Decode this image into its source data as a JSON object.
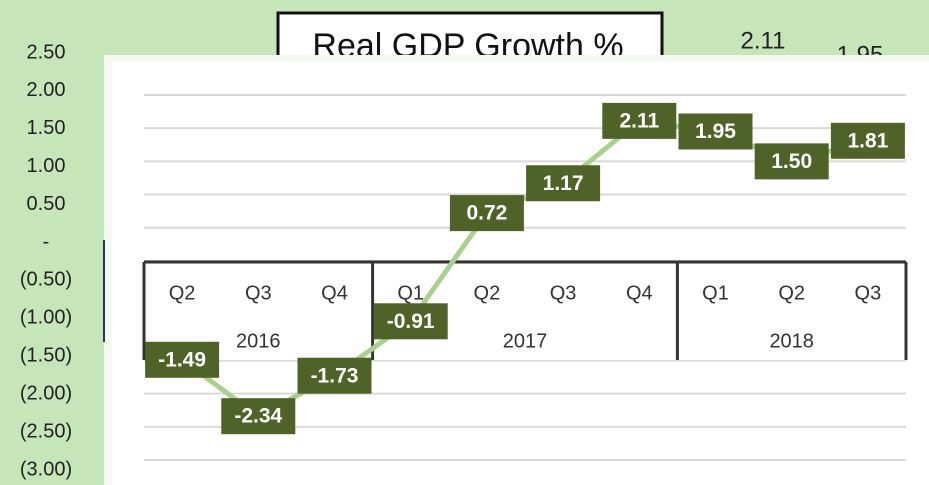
{
  "chart_data": {
    "type": "line",
    "title": "Real GDP Growth %",
    "category_groups": [
      {
        "name": "2016",
        "categories": [
          "Q2",
          "Q3",
          "Q4"
        ]
      },
      {
        "name": "2017",
        "categories": [
          "Q1",
          "Q2",
          "Q3",
          "Q4"
        ]
      },
      {
        "name": "2018",
        "categories": [
          "Q1",
          "Q2",
          "Q3"
        ]
      }
    ],
    "series": [
      {
        "name": "Real GDP Growth %",
        "color": "#a9d18e",
        "marker_color": "#c5dfae",
        "label_color": "#4f6228",
        "values": [
          -1.49,
          -2.34,
          -1.73,
          -0.91,
          0.72,
          1.17,
          2.11,
          1.95,
          1.5,
          1.81
        ],
        "value_labels": [
          "-1.49",
          "-2.34",
          "-1.73",
          "-0.91",
          "0.72",
          "1.17",
          "2.11",
          "1.95",
          "1.50",
          "1.81"
        ]
      }
    ],
    "ylim": [
      -3,
      2.5
    ],
    "yticks": [
      {
        "value": 2.5,
        "label": "2.50"
      },
      {
        "value": 2,
        "label": "2.00"
      },
      {
        "value": 1.5,
        "label": "1.50"
      },
      {
        "value": 1,
        "label": "1.00"
      },
      {
        "value": 0.5,
        "label": "0.50"
      },
      {
        "value": 0,
        "label": "-"
      },
      {
        "value": -0.5,
        "label": "(0.50)"
      },
      {
        "value": -1,
        "label": "(1.00)"
      },
      {
        "value": -1.5,
        "label": "(1.50)"
      },
      {
        "value": -2,
        "label": "(2.00)"
      },
      {
        "value": -2.5,
        "label": "(2.50)"
      },
      {
        "value": -3,
        "label": "(3.00)"
      }
    ],
    "grid": true
  }
}
